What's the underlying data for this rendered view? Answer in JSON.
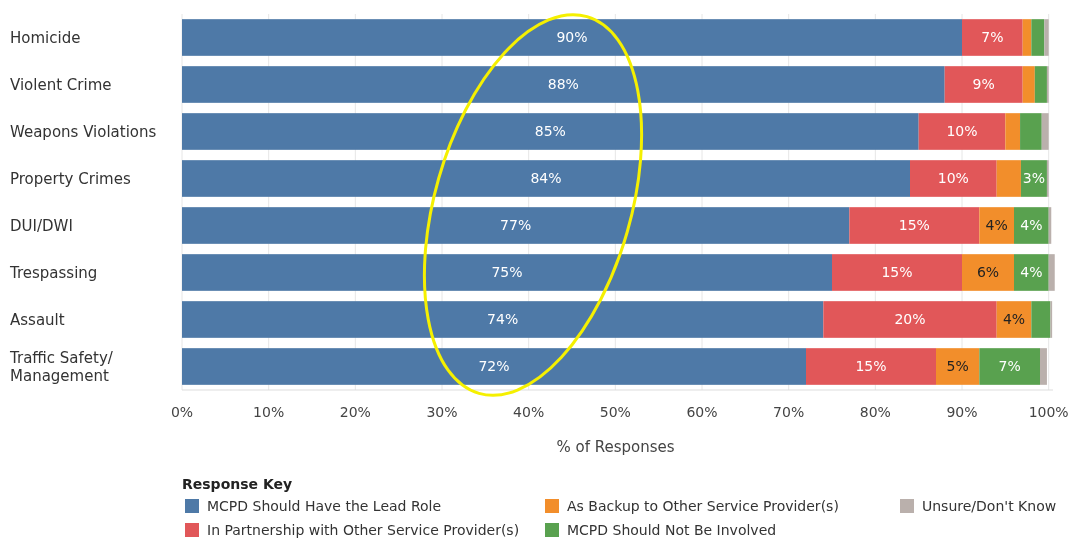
{
  "chart_data": {
    "type": "bar",
    "orientation": "horizontal",
    "stacked": true,
    "categories": [
      "Homicide",
      "Violent Crime",
      "Weapons Violations",
      "Property Crimes",
      "DUI/DWI",
      "Trespassing",
      "Assault",
      "Traffic Safety/ Management"
    ],
    "series": [
      {
        "name": "MCPD Should Have the Lead Role",
        "color": "#4e79a7",
        "values": [
          90,
          88,
          85,
          84,
          77,
          75,
          74,
          72
        ],
        "value_labels": [
          "90%",
          "88%",
          "85%",
          "84%",
          "77%",
          "75%",
          "74%",
          "72%"
        ]
      },
      {
        "name": "In Partnership with Other Service Provider(s)",
        "color": "#e15759",
        "values": [
          7,
          9,
          10,
          10,
          15,
          15,
          20,
          15
        ],
        "value_labels": [
          "7%",
          "9%",
          "10%",
          "10%",
          "15%",
          "15%",
          "20%",
          "15%"
        ]
      },
      {
        "name": "As Backup to Other Service Provider(s)",
        "color": "#f28e2b",
        "values": [
          1,
          1.4,
          1.7,
          2.8,
          4,
          6,
          4,
          5
        ],
        "value_labels": [
          null,
          null,
          null,
          null,
          "4%",
          "6%",
          "4%",
          "5%"
        ]
      },
      {
        "name": "MCPD Should Not Be Involved",
        "color": "#59a14f",
        "values": [
          1.5,
          1.4,
          2.5,
          3,
          4,
          4,
          2.2,
          7
        ],
        "value_labels": [
          null,
          null,
          null,
          "3%",
          "4%",
          "4%",
          null,
          "7%"
        ]
      },
      {
        "name": "Unsure/Don't Know",
        "color": "#bab0ac",
        "values": [
          0.5,
          0.2,
          0.8,
          0.2,
          0.3,
          0.7,
          0.2,
          0.8
        ],
        "value_labels": [
          null,
          null,
          null,
          null,
          null,
          null,
          null,
          null
        ]
      }
    ],
    "xlim": [
      0,
      100.5
    ],
    "xticks": [
      {
        "value": 0,
        "label": "0%"
      },
      {
        "value": 10,
        "label": "10%"
      },
      {
        "value": 20,
        "label": "20%"
      },
      {
        "value": 30,
        "label": "30%"
      },
      {
        "value": 40,
        "label": "40%"
      },
      {
        "value": 50,
        "label": "50%"
      },
      {
        "value": 60,
        "label": "60%"
      },
      {
        "value": 70,
        "label": "70%"
      },
      {
        "value": 80,
        "label": "80%"
      },
      {
        "value": 90,
        "label": "90%"
      },
      {
        "value": 100,
        "label": "100%"
      }
    ],
    "xlabel": "% of Responses",
    "grid": "x",
    "legend": "bottom",
    "legend_title": "Response Key"
  }
}
